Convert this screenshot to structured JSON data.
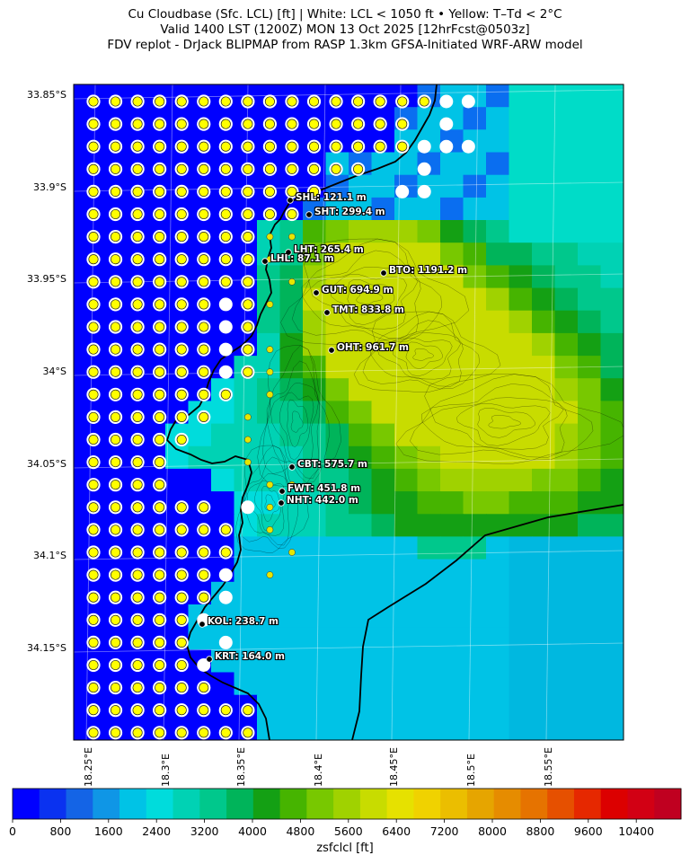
{
  "titles": {
    "line1": "Cu Cloudbase (Sfc. LCL) [ft]  |  White: LCL < 1050 ft • Yellow: T–Td < 2°C",
    "line2": "Valid 1400 LST (1200Z) MON 13 Oct 2025 [12hrFcst@0503z]",
    "line3": "FDV replot - DrJack BLIPMAP from RASP 1.3km GFSA-Initiated WRF-ARW model"
  },
  "map": {
    "lat_ticks": [
      "33.85°S",
      "33.9°S",
      "33.95°S",
      "34°S",
      "34.05°S",
      "34.1°S",
      "34.15°S"
    ],
    "lon_ticks": [
      "18.25°E",
      "18.3°E",
      "18.35°E",
      "18.4°E",
      "18.45°E",
      "18.5°E",
      "18.55°E"
    ],
    "stations": [
      {
        "code": "SHL",
        "label": "SHL: 121.1 m"
      },
      {
        "code": "SHT",
        "label": "SHT: 299.4 m"
      },
      {
        "code": "LHT",
        "label": "LHT: 265.4 m"
      },
      {
        "code": "LHL",
        "label": "LHL: 87.1 m"
      },
      {
        "code": "BTO",
        "label": "BTO: 1191.2 m"
      },
      {
        "code": "GUT",
        "label": "GUT: 694.9 m"
      },
      {
        "code": "TMT",
        "label": "TMT: 833.8 m"
      },
      {
        "code": "OHT",
        "label": "OHT: 961.7 m"
      },
      {
        "code": "CBT",
        "label": "CBT: 575.7 m"
      },
      {
        "code": "FWT",
        "label": "FWT: 451.8 m"
      },
      {
        "code": "NHT",
        "label": "NHT: 442.0 m"
      },
      {
        "code": "KOL",
        "label": "KOL: 238.7 m"
      },
      {
        "code": "KRT",
        "label": "KRT: 164.0 m"
      }
    ],
    "markers": {
      "white": "LCL < 1050 ft",
      "yellow": "T–Td < 2°C"
    }
  },
  "colorbar": {
    "label": "zsfclcl [ft]",
    "ticks": [
      "0",
      "800",
      "1600",
      "2400",
      "3200",
      "4000",
      "4800",
      "5600",
      "6400",
      "7200",
      "8000",
      "8800",
      "9600",
      "10400"
    ],
    "colors": [
      "#0000ff",
      "#0a32f0",
      "#1464e6",
      "#0f96e6",
      "#00c3e6",
      "#00dcdc",
      "#00d2b4",
      "#00c88c",
      "#00b45a",
      "#14a014",
      "#46b400",
      "#78c800",
      "#a0d200",
      "#c8dc00",
      "#e6e100",
      "#f0d200",
      "#ebbe00",
      "#e6a500",
      "#e68c00",
      "#e67300",
      "#e65000",
      "#e62800",
      "#dc0000",
      "#d20014",
      "#c00020"
    ]
  }
}
